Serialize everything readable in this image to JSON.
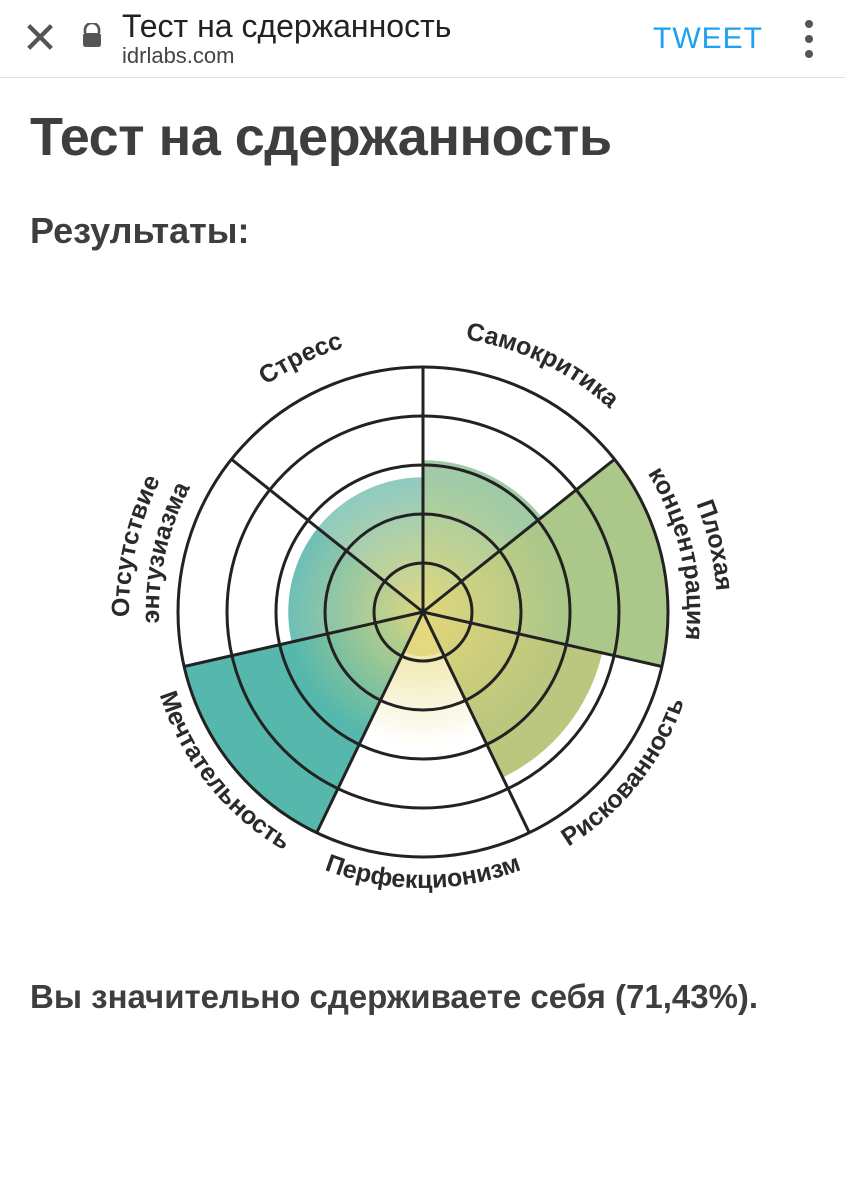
{
  "browser": {
    "page_title": "Тест на сдержанность",
    "site_url": "idrlabs.com",
    "tweet_label": "TWEET"
  },
  "content": {
    "heading": "Тест на сдержанность",
    "subheading": "Результаты:",
    "summary_text": "Вы значительно сдерживаете себя (71,43%)."
  },
  "chart": {
    "type": "polar-area",
    "sector_count": 7,
    "rings": 5,
    "ring_stroke": "#222222",
    "ring_stroke_width": 3,
    "spoke_stroke": "#222222",
    "spoke_stroke_width": 3,
    "label_fontsize": 25,
    "center_glow_color": "#e8d97a",
    "glow_radius": 0.55,
    "sectors": [
      {
        "label": "Стресс",
        "value": 0.55,
        "color": "#7fc4b8"
      },
      {
        "label": "Самокритика",
        "value": 0.62,
        "color": "#93c49a"
      },
      {
        "label": "Плохая концентрация",
        "value": 1.0,
        "color": "#a1bf7a"
      },
      {
        "label": "Рискованность",
        "value": 0.75,
        "color": "#b2be6c"
      },
      {
        "label": "Перфекционизм",
        "value": 0.18,
        "color": "#d5cf7e"
      },
      {
        "label": "Мечтательность",
        "value": 1.0,
        "color": "#3faea0"
      },
      {
        "label": "Отсутствие энтузиазма",
        "value": 0.55,
        "color": "#5ab6ad"
      }
    ],
    "label_positions": [
      {
        "arc_r": 276,
        "startDeg": -128.57,
        "endDeg": -51.43,
        "sweep": 1,
        "single": true
      },
      {
        "arc_r": 276,
        "startDeg": -128.57,
        "endDeg": -51.43,
        "sweep": 1,
        "single": true
      },
      {
        "arc_r": 294,
        "startDeg": -25.71,
        "endDeg": 25.71,
        "sweep": 1,
        "two_line": [
          "Плохая",
          "концентрация"
        ],
        "r2": 264
      },
      {
        "arc_r": 276,
        "startDeg": 128.57,
        "endDeg": 51.43,
        "sweep": 0,
        "single": true
      },
      {
        "arc_r": 276,
        "startDeg": 128.57,
        "endDeg": 51.43,
        "sweep": 0,
        "single": true
      },
      {
        "arc_r": 276,
        "startDeg": 231.43,
        "endDeg": 154.29,
        "sweep": 0,
        "single": true
      },
      {
        "arc_r": 294,
        "startDeg": 205.71,
        "endDeg": 154.29,
        "sweep": 0,
        "two_line": [
          "Отсутствие",
          "энтузиазма"
        ],
        "r2": 264
      }
    ]
  }
}
